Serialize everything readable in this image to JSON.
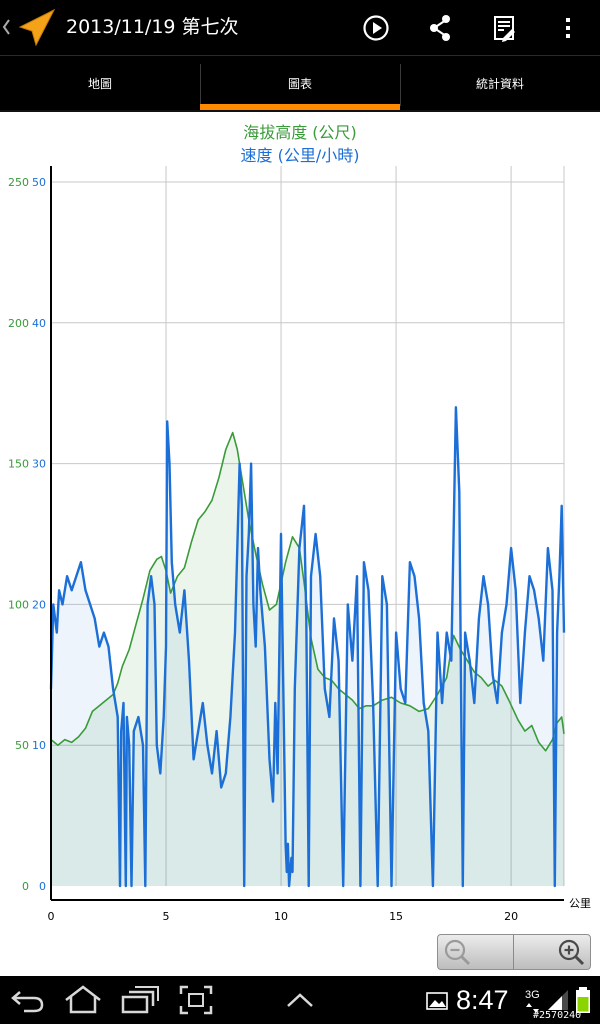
{
  "app": {
    "title": "2013/11/19 第七次"
  },
  "actions": [
    {
      "name": "play-icon"
    },
    {
      "name": "share-icon"
    },
    {
      "name": "edit-track-icon"
    },
    {
      "name": "overflow-menu-icon"
    }
  ],
  "tabs": [
    {
      "label": "地圖",
      "selected": false
    },
    {
      "label": "圖表",
      "selected": true
    },
    {
      "label": "統計資料",
      "selected": false
    }
  ],
  "colors": {
    "accent_tab": "#ff8a00",
    "elevation": "#3a9b3a",
    "speed": "#1c6fd6"
  },
  "chart_data": {
    "type": "area",
    "title": "海拔高度 (公尺)",
    "subtitle": "速度 (公里/小時)",
    "xlabel": "公里",
    "xlim": [
      0,
      22.3
    ],
    "xticks": [
      "0",
      "5",
      "10",
      "15",
      "20"
    ],
    "left_ticks_elevation": [
      "250",
      "200",
      "150",
      "100",
      "50",
      "0"
    ],
    "left_ticks_speed": [
      "50",
      "40",
      "30",
      "20",
      "10",
      "0"
    ],
    "elevation_range": [
      0,
      250
    ],
    "speed_range": [
      0,
      50
    ],
    "grid": true,
    "series": [
      {
        "name": "海拔高度 (公尺)",
        "axis": "elevation",
        "points": [
          [
            0,
            52
          ],
          [
            0.3,
            50
          ],
          [
            0.6,
            52
          ],
          [
            0.9,
            51
          ],
          [
            1.2,
            53
          ],
          [
            1.5,
            56
          ],
          [
            1.8,
            62
          ],
          [
            2.1,
            64
          ],
          [
            2.4,
            66
          ],
          [
            2.7,
            68
          ],
          [
            2.9,
            72
          ],
          [
            3.1,
            78
          ],
          [
            3.4,
            84
          ],
          [
            3.7,
            93
          ],
          [
            4.0,
            102
          ],
          [
            4.3,
            112
          ],
          [
            4.6,
            116
          ],
          [
            4.8,
            117
          ],
          [
            5.0,
            112
          ],
          [
            5.2,
            104
          ],
          [
            5.5,
            110
          ],
          [
            5.8,
            113
          ],
          [
            6.1,
            122
          ],
          [
            6.4,
            130
          ],
          [
            6.7,
            133
          ],
          [
            7.0,
            137
          ],
          [
            7.3,
            145
          ],
          [
            7.6,
            155
          ],
          [
            7.9,
            161
          ],
          [
            8.1,
            155
          ],
          [
            8.3,
            145
          ],
          [
            8.6,
            130
          ],
          [
            8.9,
            118
          ],
          [
            9.2,
            107
          ],
          [
            9.5,
            98
          ],
          [
            9.8,
            100
          ],
          [
            10.2,
            115
          ],
          [
            10.5,
            124
          ],
          [
            10.8,
            120
          ],
          [
            11.0,
            108
          ],
          [
            11.3,
            88
          ],
          [
            11.6,
            77
          ],
          [
            11.9,
            74
          ],
          [
            12.2,
            73
          ],
          [
            12.5,
            70
          ],
          [
            12.8,
            68
          ],
          [
            13.1,
            66
          ],
          [
            13.4,
            63
          ],
          [
            13.7,
            64
          ],
          [
            14.0,
            64
          ],
          [
            14.4,
            66
          ],
          [
            14.8,
            67
          ],
          [
            15.2,
            65
          ],
          [
            15.6,
            64
          ],
          [
            16.0,
            62
          ],
          [
            16.4,
            63
          ],
          [
            16.8,
            68
          ],
          [
            17.2,
            74
          ],
          [
            17.5,
            89
          ],
          [
            17.8,
            84
          ],
          [
            18.1,
            80
          ],
          [
            18.4,
            76
          ],
          [
            18.7,
            74
          ],
          [
            19.0,
            71
          ],
          [
            19.3,
            73
          ],
          [
            19.6,
            71
          ],
          [
            19.9,
            66
          ],
          [
            20.3,
            59
          ],
          [
            20.6,
            55
          ],
          [
            20.9,
            57
          ],
          [
            21.2,
            51
          ],
          [
            21.5,
            48
          ],
          [
            21.8,
            52
          ],
          [
            22.0,
            58
          ],
          [
            22.2,
            60
          ],
          [
            22.3,
            54
          ]
        ]
      },
      {
        "name": "速度 (公里/小時)",
        "axis": "speed",
        "points": [
          [
            0,
            14
          ],
          [
            0.1,
            20
          ],
          [
            0.25,
            18
          ],
          [
            0.35,
            21
          ],
          [
            0.5,
            20
          ],
          [
            0.7,
            22
          ],
          [
            0.9,
            21
          ],
          [
            1.1,
            22
          ],
          [
            1.3,
            23
          ],
          [
            1.5,
            21
          ],
          [
            1.7,
            20
          ],
          [
            1.9,
            19
          ],
          [
            2.1,
            17
          ],
          [
            2.3,
            18
          ],
          [
            2.5,
            17
          ],
          [
            2.7,
            14
          ],
          [
            2.9,
            12
          ],
          [
            3.0,
            0
          ],
          [
            3.05,
            11
          ],
          [
            3.15,
            13
          ],
          [
            3.25,
            0
          ],
          [
            3.3,
            12
          ],
          [
            3.4,
            10
          ],
          [
            3.5,
            0
          ],
          [
            3.6,
            11
          ],
          [
            3.8,
            12
          ],
          [
            4.0,
            10
          ],
          [
            4.1,
            0
          ],
          [
            4.2,
            20
          ],
          [
            4.35,
            22
          ],
          [
            4.5,
            20
          ],
          [
            4.6,
            10
          ],
          [
            4.75,
            8
          ],
          [
            4.9,
            12
          ],
          [
            5.0,
            17
          ],
          [
            5.05,
            33
          ],
          [
            5.15,
            30
          ],
          [
            5.25,
            23
          ],
          [
            5.4,
            20
          ],
          [
            5.6,
            18
          ],
          [
            5.8,
            21
          ],
          [
            6.0,
            16
          ],
          [
            6.2,
            9
          ],
          [
            6.4,
            11
          ],
          [
            6.6,
            13
          ],
          [
            6.8,
            10
          ],
          [
            7.0,
            8
          ],
          [
            7.2,
            11
          ],
          [
            7.4,
            7
          ],
          [
            7.6,
            8
          ],
          [
            7.8,
            12
          ],
          [
            8.0,
            18
          ],
          [
            8.1,
            24
          ],
          [
            8.2,
            30
          ],
          [
            8.3,
            27
          ],
          [
            8.4,
            0
          ],
          [
            8.5,
            22
          ],
          [
            8.6,
            25
          ],
          [
            8.7,
            30
          ],
          [
            8.8,
            20
          ],
          [
            8.9,
            17
          ],
          [
            9.0,
            24
          ],
          [
            9.1,
            21
          ],
          [
            9.3,
            17
          ],
          [
            9.5,
            9
          ],
          [
            9.65,
            6
          ],
          [
            9.75,
            13
          ],
          [
            9.85,
            8
          ],
          [
            10.0,
            25
          ],
          [
            10.1,
            14
          ],
          [
            10.2,
            3
          ],
          [
            10.25,
            1
          ],
          [
            10.3,
            3
          ],
          [
            10.35,
            0
          ],
          [
            10.45,
            2
          ],
          [
            10.5,
            1
          ],
          [
            10.6,
            14
          ],
          [
            10.8,
            24
          ],
          [
            11.0,
            27
          ],
          [
            11.1,
            19
          ],
          [
            11.2,
            0
          ],
          [
            11.3,
            22
          ],
          [
            11.5,
            25
          ],
          [
            11.7,
            22
          ],
          [
            11.9,
            14
          ],
          [
            12.1,
            12
          ],
          [
            12.3,
            19
          ],
          [
            12.5,
            16
          ],
          [
            12.7,
            0
          ],
          [
            12.9,
            20
          ],
          [
            13.1,
            16
          ],
          [
            13.3,
            22
          ],
          [
            13.45,
            0
          ],
          [
            13.6,
            23
          ],
          [
            13.8,
            21
          ],
          [
            14.0,
            13
          ],
          [
            14.2,
            0
          ],
          [
            14.4,
            22
          ],
          [
            14.6,
            20
          ],
          [
            14.8,
            0
          ],
          [
            15.0,
            18
          ],
          [
            15.2,
            14
          ],
          [
            15.4,
            13
          ],
          [
            15.6,
            23
          ],
          [
            15.8,
            22
          ],
          [
            16.0,
            19
          ],
          [
            16.2,
            13
          ],
          [
            16.4,
            11
          ],
          [
            16.6,
            0
          ],
          [
            16.8,
            18
          ],
          [
            17.0,
            13
          ],
          [
            17.2,
            18
          ],
          [
            17.4,
            16
          ],
          [
            17.6,
            34
          ],
          [
            17.75,
            28
          ],
          [
            17.9,
            0
          ],
          [
            18.0,
            18
          ],
          [
            18.2,
            16
          ],
          [
            18.4,
            13
          ],
          [
            18.6,
            19
          ],
          [
            18.8,
            22
          ],
          [
            19.0,
            20
          ],
          [
            19.2,
            15
          ],
          [
            19.4,
            13
          ],
          [
            19.6,
            18
          ],
          [
            19.8,
            20
          ],
          [
            20.0,
            24
          ],
          [
            20.2,
            21
          ],
          [
            20.4,
            13
          ],
          [
            20.6,
            18
          ],
          [
            20.8,
            22
          ],
          [
            21.0,
            21
          ],
          [
            21.2,
            19
          ],
          [
            21.4,
            16
          ],
          [
            21.6,
            24
          ],
          [
            21.8,
            21
          ],
          [
            21.9,
            0
          ],
          [
            22.0,
            18
          ],
          [
            22.1,
            22
          ],
          [
            22.2,
            27
          ],
          [
            22.3,
            18
          ]
        ]
      }
    ]
  },
  "zoom": {
    "zoom_out": "zoom-out-icon",
    "zoom_in": "zoom-in-icon"
  },
  "status": {
    "clock": "8:47",
    "network": "3G"
  },
  "watermark": "#2570240"
}
